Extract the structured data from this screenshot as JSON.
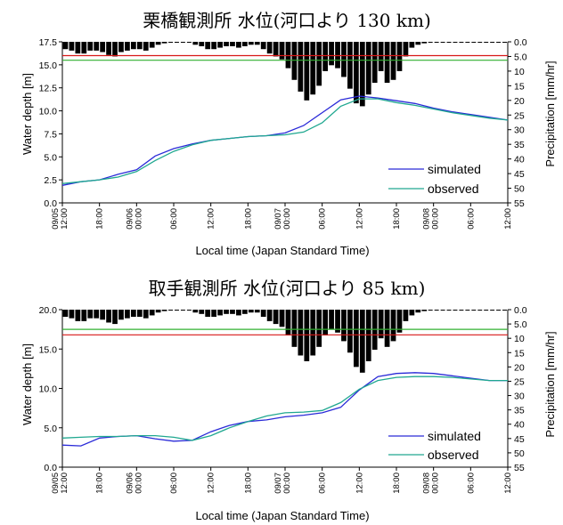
{
  "chart_data": [
    {
      "type": "line",
      "title": "栗橋観測所 水位(河口より 130 km)",
      "xlabel": "Local time (Japan Standard Time)",
      "ylabel": "Water depth [m]",
      "y2label": "Precipitation [mm/hr]",
      "ylim": [
        0,
        17.5
      ],
      "y_ticks": [
        "0.0",
        "2.5",
        "5.0",
        "7.5",
        "10.0",
        "12.5",
        "15.0",
        "17.5"
      ],
      "y2lim": [
        0,
        55
      ],
      "y2_inverted": true,
      "y2_ticks": [
        "0.0",
        "5.0",
        "10",
        "15",
        "20",
        "25",
        "30",
        "35",
        "40",
        "45",
        "50",
        "55"
      ],
      "x_ticks": [
        "09/05 12:00",
        "18:00",
        "09/06 00:00",
        "06:00",
        "12:00",
        "18:00",
        "09/07 00:00",
        "06:00",
        "12:00",
        "18:00",
        "09/08 00:00",
        "06:00",
        "12:00"
      ],
      "xlim_hours": [
        0,
        72
      ],
      "x": [
        0,
        3,
        6,
        9,
        12,
        15,
        18,
        21,
        24,
        27,
        30,
        33,
        36,
        39,
        42,
        45,
        48,
        51,
        54,
        57,
        60,
        63,
        66,
        69,
        72
      ],
      "series": [
        {
          "name": "simulated",
          "color": "#2a2ad8",
          "values": [
            1.9,
            2.3,
            2.5,
            3.1,
            3.6,
            5.1,
            5.9,
            6.4,
            6.8,
            7.0,
            7.2,
            7.3,
            7.6,
            8.4,
            9.8,
            11.2,
            11.6,
            11.4,
            11.1,
            10.8,
            10.3,
            9.9,
            9.6,
            9.3,
            9.0
          ]
        },
        {
          "name": "observed",
          "color": "#20a890",
          "values": [
            2.1,
            2.3,
            2.5,
            2.8,
            3.4,
            4.6,
            5.6,
            6.3,
            6.8,
            7.0,
            7.2,
            7.3,
            7.4,
            7.7,
            8.7,
            10.5,
            11.3,
            11.3,
            10.9,
            10.6,
            10.2,
            9.8,
            9.5,
            9.2,
            9.0
          ]
        }
      ],
      "thresholds": [
        {
          "value": 16.0,
          "color": "#d81818"
        },
        {
          "value": 15.5,
          "color": "#30b030"
        }
      ],
      "precipitation": {
        "color": "#000000",
        "values": [
          2.5,
          3,
          4,
          4,
          3,
          3,
          3.5,
          4.5,
          5,
          3.5,
          3,
          2.5,
          2.5,
          3,
          2,
          1,
          0.5,
          0,
          0,
          0,
          0,
          1,
          1.5,
          2.5,
          2.5,
          2,
          1.5,
          1.5,
          2,
          1.5,
          1,
          1,
          2.5,
          4,
          5,
          6,
          9,
          13,
          17,
          20,
          18,
          15,
          10,
          8,
          9,
          12,
          16,
          21,
          22,
          18,
          14,
          10,
          14,
          13,
          10,
          5,
          2,
          1,
          0.5,
          0,
          0,
          0,
          0,
          0,
          0,
          0,
          0,
          0,
          0,
          0,
          0,
          0
        ]
      }
    },
    {
      "type": "line",
      "title": "取手観測所 水位(河口より 85 km)",
      "xlabel": "Local time (Japan Standard Time)",
      "ylabel": "Water depth [m]",
      "y2label": "Precipitation [mm/hr]",
      "ylim": [
        0,
        20.0
      ],
      "y_ticks": [
        "0.0",
        "5.0",
        "10.0",
        "15.0",
        "20.0"
      ],
      "y2lim": [
        0,
        55
      ],
      "y2_inverted": true,
      "y2_ticks": [
        "0.0",
        "5.0",
        "10",
        "15",
        "20",
        "25",
        "30",
        "35",
        "40",
        "45",
        "50",
        "55"
      ],
      "x_ticks": [
        "09/05 12:00",
        "18:00",
        "09/06 00:00",
        "06:00",
        "12:00",
        "18:00",
        "09/07 00:00",
        "06:00",
        "12:00",
        "18:00",
        "09/08 00:00",
        "06:00",
        "12:00"
      ],
      "xlim_hours": [
        0,
        72
      ],
      "x": [
        0,
        3,
        6,
        9,
        12,
        15,
        18,
        21,
        24,
        27,
        30,
        33,
        36,
        39,
        42,
        45,
        48,
        51,
        54,
        57,
        60,
        63,
        66,
        69,
        72
      ],
      "series": [
        {
          "name": "simulated",
          "color": "#2a2ad8",
          "values": [
            2.8,
            2.7,
            3.7,
            3.9,
            4.0,
            3.6,
            3.3,
            3.4,
            4.5,
            5.3,
            5.8,
            6.0,
            6.4,
            6.6,
            6.9,
            7.6,
            9.8,
            11.5,
            11.9,
            12.0,
            11.9,
            11.6,
            11.3,
            11.0,
            11.0
          ]
        },
        {
          "name": "observed",
          "color": "#20a890",
          "values": [
            3.7,
            3.8,
            3.9,
            3.9,
            4.0,
            4.0,
            3.8,
            3.4,
            4.0,
            5.0,
            5.8,
            6.5,
            6.9,
            7.0,
            7.2,
            8.2,
            9.9,
            11.0,
            11.4,
            11.5,
            11.5,
            11.4,
            11.2,
            11.0,
            11.0
          ]
        }
      ],
      "thresholds": [
        {
          "value": 17.5,
          "color": "#30b030"
        },
        {
          "value": 16.8,
          "color": "#d81818"
        }
      ],
      "precipitation": {
        "color": "#000000",
        "values": [
          2.5,
          3,
          4,
          4,
          3,
          3,
          3.5,
          4.5,
          5,
          3.5,
          3,
          2.5,
          2.5,
          3,
          2,
          1,
          0.5,
          0,
          0,
          0,
          0,
          1,
          1.5,
          2.5,
          2.5,
          2,
          1.5,
          1.5,
          2,
          1.5,
          1,
          1,
          2.5,
          4,
          5,
          6,
          9,
          13,
          16,
          18,
          16,
          13,
          9,
          7,
          8,
          11,
          15,
          20,
          22,
          18,
          14,
          10,
          13,
          11,
          8,
          4,
          2,
          1,
          0.5,
          0,
          0,
          0,
          0,
          0,
          0,
          0,
          0,
          0,
          0,
          0,
          0,
          0
        ]
      }
    }
  ]
}
